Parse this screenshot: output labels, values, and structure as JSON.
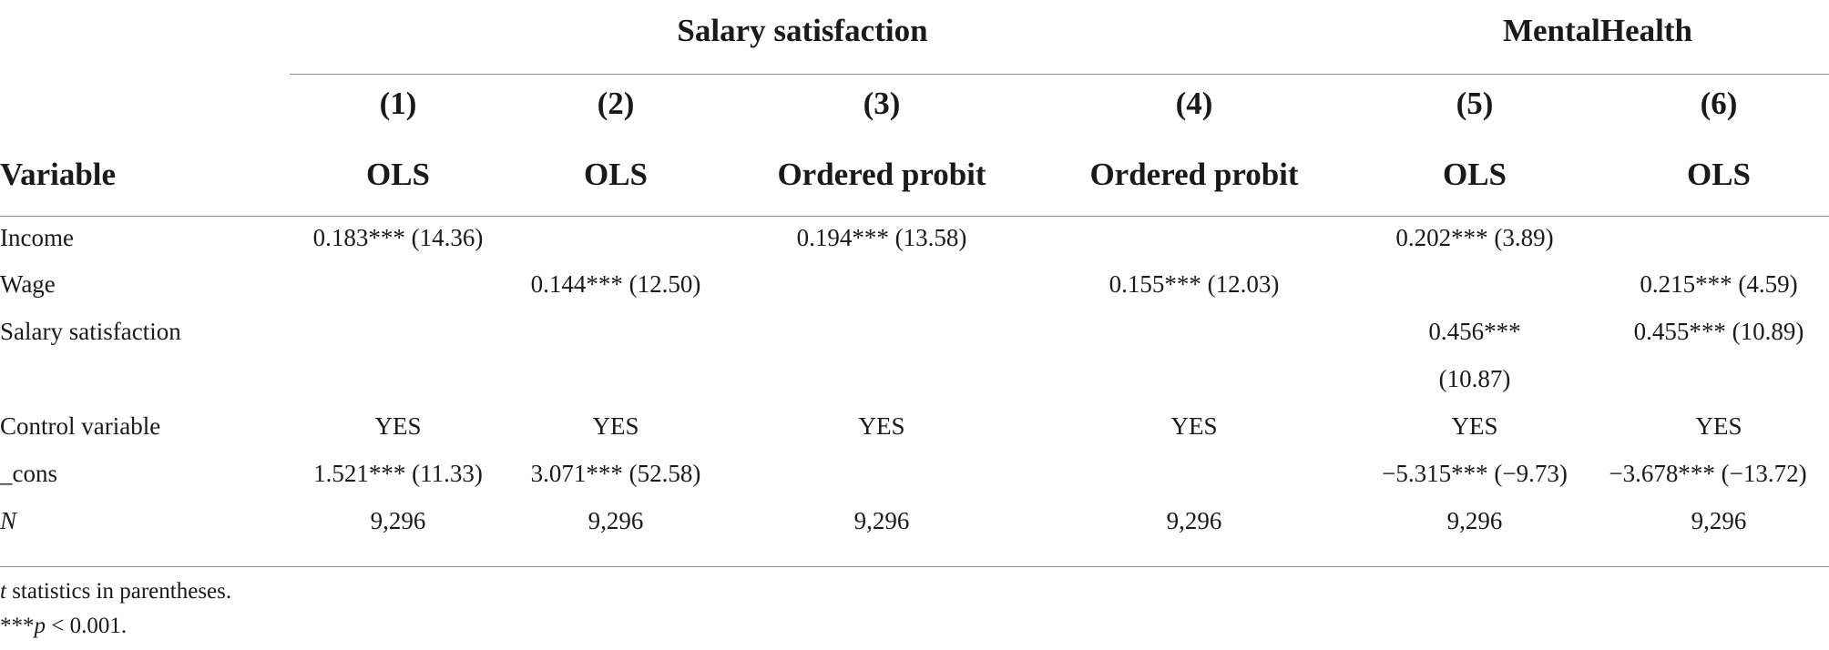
{
  "header": {
    "group_salary": "Salary satisfaction",
    "group_mental": "MentalHealth",
    "variable_label": "Variable",
    "columns": [
      {
        "num": "(1)",
        "method": "OLS"
      },
      {
        "num": "(2)",
        "method": "OLS"
      },
      {
        "num": "(3)",
        "method": "Ordered probit"
      },
      {
        "num": "(4)",
        "method": "Ordered probit"
      },
      {
        "num": "(5)",
        "method": "OLS"
      },
      {
        "num": "(6)",
        "method": "OLS"
      }
    ]
  },
  "rows": [
    {
      "label": "Income",
      "cells": [
        "0.183*** (14.36)",
        "",
        "0.194*** (13.58)",
        "",
        "0.202*** (3.89)",
        ""
      ]
    },
    {
      "label": "Wage",
      "cells": [
        "",
        "0.144*** (12.50)",
        "",
        "0.155*** (12.03)",
        "",
        "0.215*** (4.59)"
      ]
    },
    {
      "label": "Salary satisfaction",
      "cells": [
        "",
        "",
        "",
        "",
        "0.456***",
        "0.455*** (10.89)"
      ],
      "cells_line2": [
        "",
        "",
        "",
        "",
        "(10.87)",
        ""
      ]
    },
    {
      "label": "Control variable",
      "cells": [
        "YES",
        "YES",
        "YES",
        "YES",
        "YES",
        "YES"
      ]
    },
    {
      "label": "_cons",
      "cells": [
        "1.521*** (11.33)",
        "3.071*** (52.58)",
        "",
        "",
        "−5.315*** (−9.73)",
        "−3.678*** (−13.72)"
      ]
    },
    {
      "label": "N",
      "cells": [
        "9,296",
        "9,296",
        "9,296",
        "9,296",
        "9,296",
        "9,296"
      ]
    }
  ],
  "notes": {
    "note1_italic": "t",
    "note1_rest": " statistics in parentheses.",
    "note2_stars": "***",
    "note2_italic": "p",
    "note2_rest": " < 0.001."
  }
}
